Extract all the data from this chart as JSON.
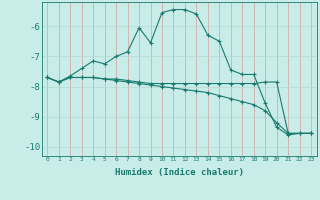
{
  "xlabel": "Humidex (Indice chaleur)",
  "bg_color": "#c8ede9",
  "grid_color_v": "#e8b0b0",
  "grid_color_h": "#b8d8d4",
  "line_color": "#1a7a6e",
  "xlim": [
    -0.5,
    23.5
  ],
  "ylim": [
    -10.3,
    -5.2
  ],
  "yticks": [
    -10,
    -9,
    -8,
    -7,
    -6
  ],
  "xticks": [
    0,
    1,
    2,
    3,
    4,
    5,
    6,
    7,
    8,
    9,
    10,
    11,
    12,
    13,
    14,
    15,
    16,
    17,
    18,
    19,
    20,
    21,
    22,
    23
  ],
  "line1_x": [
    0,
    1,
    2,
    3,
    4,
    5,
    6,
    7,
    8,
    9,
    10,
    11,
    12,
    13,
    14,
    15,
    16,
    17,
    18,
    19,
    20,
    21,
    22,
    23
  ],
  "line1_y": [
    -7.7,
    -7.85,
    -7.65,
    -7.4,
    -7.15,
    -7.25,
    -7.0,
    -6.85,
    -6.05,
    -6.55,
    -5.55,
    -5.45,
    -5.45,
    -5.6,
    -6.3,
    -6.5,
    -7.45,
    -7.6,
    -7.6,
    -8.55,
    -9.35,
    -9.6,
    -9.55,
    -9.55
  ],
  "line2_x": [
    0,
    1,
    2,
    3,
    4,
    5,
    6,
    7,
    8,
    9,
    10,
    11,
    12,
    13,
    14,
    15,
    16,
    17,
    18,
    19,
    20,
    21,
    22,
    23
  ],
  "line2_y": [
    -7.7,
    -7.85,
    -7.7,
    -7.7,
    -7.7,
    -7.75,
    -7.75,
    -7.8,
    -7.85,
    -7.9,
    -7.9,
    -7.9,
    -7.9,
    -7.9,
    -7.9,
    -7.9,
    -7.9,
    -7.9,
    -7.9,
    -7.85,
    -7.85,
    -9.55,
    -9.55,
    -9.55
  ],
  "line3_x": [
    0,
    1,
    2,
    3,
    4,
    5,
    6,
    7,
    8,
    9,
    10,
    11,
    12,
    13,
    14,
    15,
    16,
    17,
    18,
    19,
    20,
    21,
    22,
    23
  ],
  "line3_y": [
    -7.7,
    -7.85,
    -7.7,
    -7.7,
    -7.7,
    -7.75,
    -7.8,
    -7.85,
    -7.9,
    -7.95,
    -8.0,
    -8.05,
    -8.1,
    -8.15,
    -8.2,
    -8.3,
    -8.4,
    -8.5,
    -8.6,
    -8.8,
    -9.2,
    -9.55,
    -9.55,
    -9.55
  ]
}
